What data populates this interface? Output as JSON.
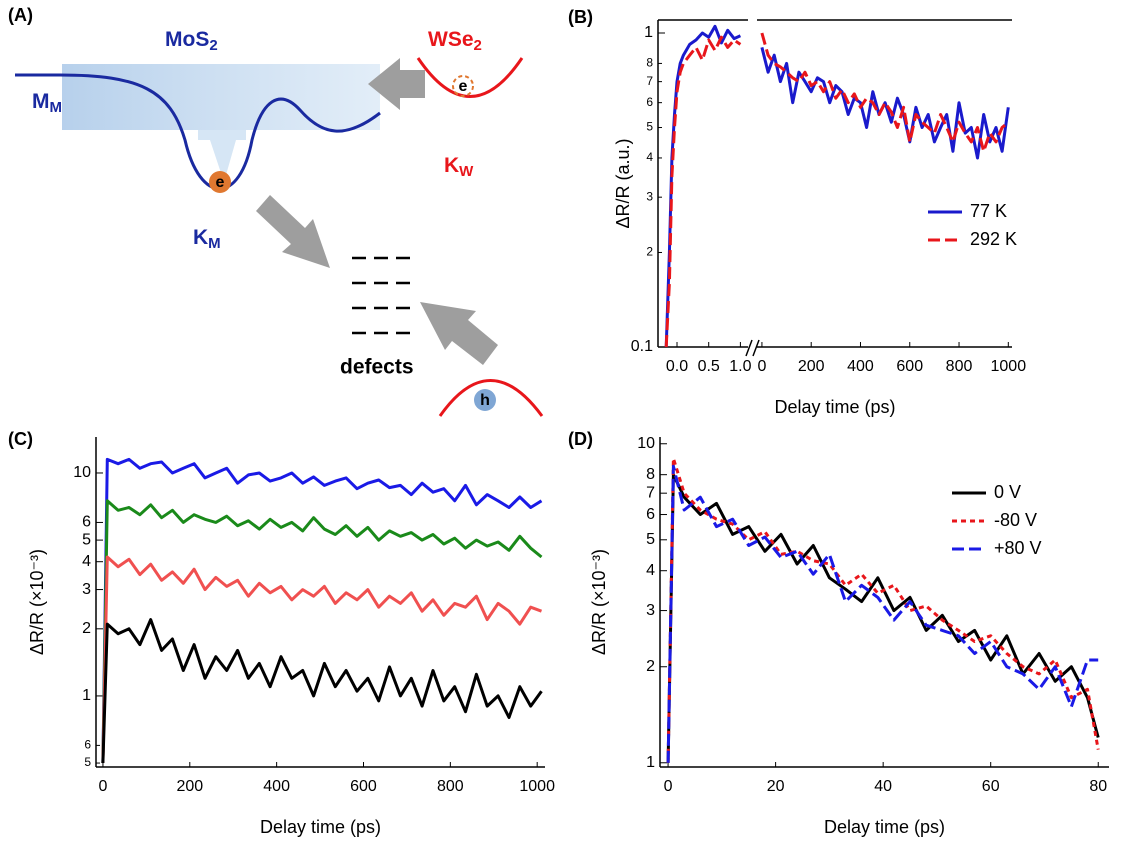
{
  "diagram": {
    "label": "(A)",
    "mos2": {
      "base": "MoS",
      "sub": "2"
    },
    "wse2": {
      "base": "WSe",
      "sub": "2"
    },
    "m_m": {
      "base": "M",
      "sub": "M"
    },
    "k_m": {
      "base": "K",
      "sub": "M"
    },
    "k_w": {
      "base": "K",
      "sub": "W"
    },
    "electron_mos2": "e",
    "electron_wse2": "e",
    "hole": "h",
    "defects": "defects"
  },
  "chart_data": [
    {
      "type": "line",
      "panel": "(B)",
      "xlabel": "Delay time (ps)",
      "ylabel": "ΔR/R  (a.u.)",
      "log_y": true,
      "legend": "center right",
      "ylim": [
        0.1,
        1.1
      ],
      "yticks": [
        0.1,
        {
          "value": 0.2,
          "label": "2"
        },
        {
          "value": 0.3,
          "label": "3"
        },
        {
          "value": 0.4,
          "label": "4"
        },
        {
          "value": 0.5,
          "label": "5"
        },
        {
          "value": 0.6,
          "label": "6"
        },
        {
          "value": 0.7,
          "label": "7"
        },
        {
          "value": 0.8,
          "label": "8"
        },
        1
      ],
      "x_segments": [
        {
          "xlim": [
            -0.3,
            1.12
          ],
          "xticks": [
            {
              "value": 0,
              "label": "0.0"
            },
            {
              "value": 0.5,
              "label": "0.5"
            },
            {
              "value": 1,
              "label": "1.0"
            }
          ]
        },
        {
          "xlim": [
            -20,
            1015
          ],
          "xticks": [
            0,
            200,
            400,
            600,
            800,
            1000
          ]
        }
      ],
      "series": [
        {
          "name": "77 K",
          "color": "#1a1acc",
          "dash": "solid",
          "segments": [
            {
              "x": [
                -0.17,
                -0.12,
                -0.08,
                -0.04,
                0,
                0.05,
                0.1,
                0.2,
                0.3,
                0.4,
                0.5,
                0.6,
                0.7,
                0.8,
                0.9,
                1.0
              ],
              "values": [
                0.1,
                0.2,
                0.4,
                0.55,
                0.7,
                0.8,
                0.85,
                0.92,
                0.95,
                1.0,
                0.97,
                1.05,
                0.93,
                1.02,
                0.96,
                0.98
              ]
            },
            {
              "x": [
                0,
                25,
                50,
                75,
                100,
                125,
                150,
                175,
                200,
                225,
                250,
                275,
                300,
                325,
                350,
                375,
                400,
                425,
                450,
                475,
                500,
                525,
                550,
                575,
                600,
                625,
                650,
                675,
                700,
                725,
                750,
                775,
                800,
                825,
                850,
                875,
                900,
                925,
                950,
                975,
                1000
              ],
              "values": [
                0.9,
                0.75,
                0.85,
                0.7,
                0.8,
                0.6,
                0.75,
                0.7,
                0.65,
                0.72,
                0.7,
                0.6,
                0.68,
                0.65,
                0.55,
                0.62,
                0.6,
                0.5,
                0.65,
                0.55,
                0.6,
                0.52,
                0.62,
                0.55,
                0.45,
                0.58,
                0.5,
                0.55,
                0.45,
                0.5,
                0.55,
                0.42,
                0.6,
                0.48,
                0.5,
                0.4,
                0.55,
                0.45,
                0.5,
                0.42,
                0.58
              ]
            }
          ]
        },
        {
          "name": "292 K",
          "color": "#e8161b",
          "dash": "dashed",
          "segments": [
            {
              "x": [
                -0.17,
                -0.12,
                -0.08,
                -0.04,
                0,
                0.05,
                0.1,
                0.2,
                0.3,
                0.4,
                0.5,
                0.6,
                0.7,
                0.8,
                0.9,
                1.0
              ],
              "values": [
                0.1,
                0.16,
                0.35,
                0.5,
                0.65,
                0.75,
                0.8,
                0.85,
                0.9,
                0.82,
                0.95,
                0.88,
                0.97,
                0.9,
                0.95,
                0.92
              ]
            },
            {
              "x": [
                0,
                25,
                50,
                75,
                100,
                125,
                150,
                175,
                200,
                225,
                250,
                275,
                300,
                325,
                350,
                375,
                400,
                425,
                450,
                475,
                500,
                525,
                550,
                575,
                600,
                625,
                650,
                675,
                700,
                725,
                750,
                775,
                800,
                825,
                850,
                875,
                900,
                925,
                950,
                975,
                1000
              ],
              "values": [
                1.0,
                0.85,
                0.8,
                0.78,
                0.75,
                0.72,
                0.7,
                0.75,
                0.68,
                0.7,
                0.65,
                0.7,
                0.62,
                0.66,
                0.6,
                0.64,
                0.58,
                0.62,
                0.6,
                0.55,
                0.6,
                0.56,
                0.5,
                0.58,
                0.45,
                0.55,
                0.52,
                0.5,
                0.48,
                0.55,
                0.5,
                0.45,
                0.52,
                0.48,
                0.45,
                0.5,
                0.42,
                0.48,
                0.45,
                0.5,
                0.52
              ]
            }
          ]
        }
      ]
    },
    {
      "type": "line",
      "panel": "(C)",
      "xlabel": "Delay time (ps)",
      "ylabel": "ΔR/R (×10⁻³)",
      "log_y": true,
      "ylim": [
        0.48,
        14.5
      ],
      "yticks": [
        {
          "value": 0.5,
          "label": "5"
        },
        {
          "value": 0.6,
          "label": "6"
        },
        1,
        2,
        3,
        4,
        5,
        6,
        10
      ],
      "xlim": [
        -16,
        1018
      ],
      "xticks": [
        0,
        200,
        400,
        600,
        800,
        1000
      ],
      "x": [
        0,
        10,
        35,
        60,
        85,
        110,
        135,
        160,
        185,
        210,
        235,
        260,
        285,
        310,
        335,
        360,
        385,
        410,
        435,
        460,
        485,
        510,
        535,
        560,
        585,
        610,
        635,
        660,
        685,
        710,
        735,
        760,
        785,
        810,
        835,
        860,
        885,
        910,
        935,
        960,
        985,
        1010
      ],
      "series": [
        {
          "color": "#1a1ae6",
          "dash": "solid",
          "values": [
            0.5,
            11.5,
            11,
            11.5,
            10.5,
            11,
            11.2,
            10,
            10.5,
            11,
            9.5,
            10,
            10.5,
            9,
            9.8,
            10,
            9.2,
            9.5,
            10,
            9,
            9.6,
            8.8,
            9.2,
            9.5,
            8.5,
            9,
            9.3,
            8.6,
            8.8,
            8,
            9,
            8.2,
            8.5,
            7.5,
            8.8,
            7.2,
            8,
            7.5,
            7,
            7.8,
            7,
            7.5
          ]
        },
        {
          "color": "#1a8a1a",
          "dash": "solid",
          "values": [
            0.5,
            7.5,
            6.8,
            7,
            6.5,
            7.2,
            6.3,
            6.8,
            6,
            6.5,
            6.2,
            6,
            6.4,
            5.8,
            6.1,
            5.6,
            6.2,
            5.7,
            6,
            5.5,
            6.3,
            5.6,
            5.3,
            5.8,
            5.2,
            5.7,
            5,
            5.5,
            5.2,
            5.4,
            5,
            5.3,
            4.8,
            5.1,
            4.6,
            5,
            4.7,
            4.9,
            4.5,
            5.2,
            4.6,
            4.2
          ]
        },
        {
          "color": "#f05050",
          "dash": "solid",
          "values": [
            0.5,
            4.2,
            3.8,
            4.1,
            3.5,
            3.9,
            3.3,
            3.6,
            3.2,
            3.7,
            3,
            3.4,
            3.1,
            3.3,
            2.8,
            3.2,
            2.9,
            3.1,
            2.7,
            3,
            2.8,
            3.1,
            2.6,
            2.9,
            2.7,
            3,
            2.5,
            2.8,
            2.6,
            2.9,
            2.4,
            2.7,
            2.3,
            2.6,
            2.5,
            2.8,
            2.2,
            2.6,
            2.4,
            2.1,
            2.5,
            2.4
          ]
        },
        {
          "color": "#000000",
          "dash": "solid",
          "values": [
            0.5,
            2.1,
            1.9,
            2,
            1.7,
            2.2,
            1.6,
            1.8,
            1.3,
            1.7,
            1.2,
            1.5,
            1.3,
            1.6,
            1.2,
            1.4,
            1.1,
            1.5,
            1.2,
            1.3,
            1,
            1.4,
            1.1,
            1.3,
            1.05,
            1.2,
            0.95,
            1.35,
            1,
            1.2,
            0.9,
            1.3,
            0.95,
            1.1,
            0.85,
            1.25,
            0.9,
            1,
            0.8,
            1.1,
            0.9,
            1.05
          ]
        }
      ]
    },
    {
      "type": "line",
      "panel": "(D)",
      "xlabel": "Delay time (ps)",
      "ylabel": "ΔR/R (×10⁻³)",
      "log_y": true,
      "legend": "upper right",
      "ylim": [
        0.97,
        10.5
      ],
      "yticks": [
        1,
        2,
        3,
        4,
        5,
        6,
        7,
        8,
        10
      ],
      "xlim": [
        -1.5,
        82
      ],
      "xticks": [
        0,
        20,
        40,
        60,
        80
      ],
      "x": [
        0,
        1,
        3,
        6,
        9,
        12,
        15,
        18,
        21,
        24,
        27,
        30,
        33,
        36,
        39,
        42,
        45,
        48,
        51,
        54,
        57,
        60,
        63,
        66,
        69,
        72,
        75,
        78,
        80
      ],
      "series": [
        {
          "name": "0 V",
          "color": "#000000",
          "dash": "solid",
          "values": [
            1.0,
            8,
            6.8,
            6,
            6.5,
            5.2,
            5.5,
            4.6,
            5.2,
            4.2,
            4.8,
            3.8,
            3.5,
            3.2,
            3.8,
            3,
            3.3,
            2.6,
            2.9,
            2.4,
            2.6,
            2.1,
            2.5,
            1.9,
            2.2,
            1.8,
            2.0,
            1.6,
            1.2
          ]
        },
        {
          "name": "-80 V",
          "color": "#e8161b",
          "dash": "dotted",
          "values": [
            1.0,
            9,
            7,
            6.2,
            5.8,
            5.6,
            5,
            5.3,
            4.5,
            4.6,
            4.3,
            4.2,
            3.6,
            3.9,
            3.4,
            3.6,
            3,
            3.1,
            2.8,
            2.6,
            2.4,
            2.5,
            2.2,
            2,
            1.9,
            2.1,
            1.6,
            1.7,
            1.1
          ]
        },
        {
          "name": "+80 V",
          "color": "#1a1ae6",
          "dash": "dashed",
          "values": [
            1.0,
            8.5,
            6.2,
            6.8,
            5.5,
            5.8,
            4.8,
            5.1,
            4.4,
            4.6,
            3.9,
            4.5,
            3.2,
            3.6,
            3.3,
            2.8,
            3.2,
            2.7,
            2.6,
            2.5,
            2.2,
            2.4,
            2.0,
            1.9,
            1.7,
            2.0,
            1.5,
            2.1,
            2.1
          ]
        }
      ]
    }
  ]
}
